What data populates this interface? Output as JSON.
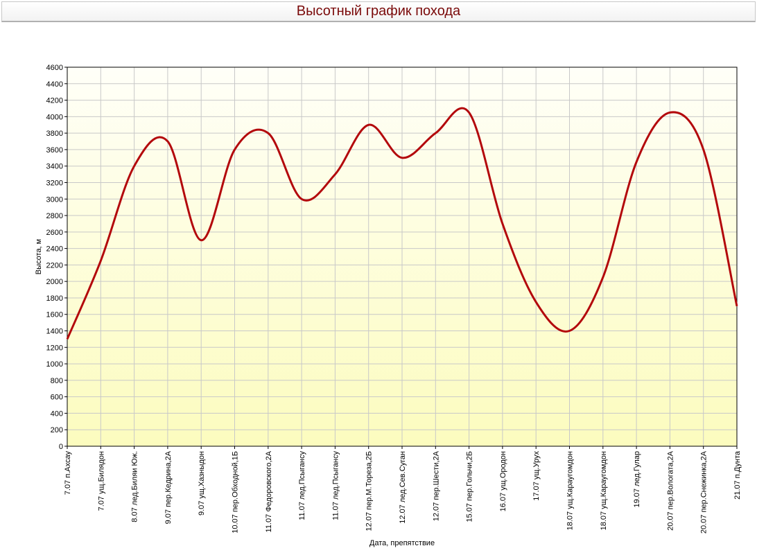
{
  "page": {
    "title": "Высотный график похода"
  },
  "chart_data": {
    "type": "line",
    "title": "Высотный график похода",
    "xlabel": "Дата, препятствие",
    "ylabel": "Высота, м",
    "ylim": [
      0,
      4600
    ],
    "y_ticks": [
      0,
      200,
      400,
      600,
      800,
      1000,
      1200,
      1400,
      1600,
      1800,
      2000,
      2200,
      2400,
      2600,
      2800,
      3000,
      3200,
      3400,
      3600,
      3800,
      4000,
      4200,
      4400,
      4600
    ],
    "grid": true,
    "legend": "none",
    "categories": [
      "7.07 п.Ахсау",
      "7.07 ущ.Билядон",
      "8.07 лед.Биляи Юж.",
      "9.07 пер.Кедрина,2А",
      "9.07 ущ.Хазныдон",
      "10.07 пер.Обходной,1Б",
      "11.07 Федоровского,2А",
      "11.07 лед.Псыгансу",
      "11.07 лед.Псыгансу",
      "12.07 пер.М.Тореза,2Б",
      "12.07 лед.Сев.Суган",
      "12.07 пер.Шести,2А",
      "15.07 пер.Гольчи,2Б",
      "16.07 ущ.Ородон",
      "17.07 ущ.Урух",
      "18.07 ущ.Караугомдон",
      "18.07 ущ.Караугомдон",
      "19.07 лед.Гулар",
      "20.07 пер.Вологата,2А",
      "20.07 пер.Снежинка,2А",
      "21.07 п.Дунта"
    ],
    "series": [
      {
        "values": [
          1300,
          2250,
          3400,
          3700,
          2500,
          3600,
          3800,
          3000,
          3300,
          3900,
          3500,
          3800,
          4050,
          2700,
          1750,
          1400,
          2050,
          3450,
          4050,
          3600,
          1700
        ]
      }
    ],
    "colors": {
      "line": "#b3080c",
      "grid": "#c8c8c8",
      "bg_top": "#fffff8",
      "bg_bottom": "#fcfcbe",
      "title": "#7a0a0a"
    }
  }
}
